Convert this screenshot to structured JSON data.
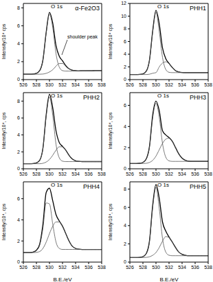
{
  "chart_data": [
    {
      "type": "line",
      "title": "α-Fe2O3",
      "annotations": [
        "O 1s",
        "shoulder peak"
      ],
      "y_label": "Intensity/10⁴ cps",
      "x": [
        526,
        526.5,
        527,
        527.5,
        528,
        528.5,
        529,
        529.5,
        530,
        530.5,
        531,
        531.5,
        532,
        532.5,
        533,
        533.5,
        534,
        534.5,
        535,
        535.5,
        536,
        536.5,
        537,
        537.5,
        538
      ],
      "xlim": [
        526,
        538
      ],
      "xticks": [
        526,
        528,
        530,
        532,
        534,
        536,
        538
      ],
      "ylim": [
        0,
        8.5
      ],
      "yticks": [
        0,
        2,
        4,
        6,
        8
      ],
      "series": [
        {
          "color": "#000000",
          "values": [
            0.6,
            0.6,
            0.6,
            0.62,
            0.7,
            1.0,
            2.2,
            5.3,
            7.5,
            6.3,
            3.8,
            2.6,
            2.1,
            1.55,
            1.2,
            1.05,
            1.0,
            0.97,
            0.98,
            0.98,
            0.99,
            0.99,
            1.0,
            1.0,
            1.0
          ]
        },
        {
          "color": "#555555",
          "values": [
            0.6,
            0.6,
            0.6,
            0.62,
            0.7,
            1.0,
            2.2,
            5.2,
            7.3,
            5.8,
            2.9,
            1.4,
            1.0,
            0.95,
            0.95,
            0.95,
            0.96,
            0.97,
            0.98,
            0.98,
            0.99,
            0.99,
            1.0,
            1.0,
            1.0
          ]
        },
        {
          "color": "#555555",
          "values": [
            0.6,
            0.6,
            0.6,
            0.6,
            0.6,
            0.6,
            0.62,
            0.7,
            0.85,
            1.1,
            1.5,
            1.8,
            1.8,
            1.5,
            1.2,
            1.05,
            1.0,
            0.97,
            0.98,
            0.98,
            0.99,
            0.99,
            1.0,
            1.0,
            1.0
          ]
        }
      ]
    },
    {
      "type": "line",
      "title": "PHH1",
      "annotations": [
        "O 1s"
      ],
      "y_label": "Intensity/10⁴ cps",
      "x": [
        526,
        526.5,
        527,
        527.5,
        528,
        528.5,
        529,
        529.5,
        530,
        530.5,
        531,
        531.5,
        532,
        532.5,
        533,
        533.5,
        534,
        534.5,
        535,
        535.5,
        536,
        536.5,
        537,
        537.5,
        538
      ],
      "xlim": [
        526,
        538
      ],
      "xticks": [
        526,
        528,
        530,
        532,
        534,
        536,
        538
      ],
      "ylim": [
        0,
        12
      ],
      "yticks": [
        0,
        2,
        4,
        6,
        8,
        10,
        12
      ],
      "series": [
        {
          "color": "#000000",
          "values": [
            0.8,
            0.8,
            0.8,
            0.82,
            0.9,
            1.3,
            3.05,
            7.7,
            10.9,
            8.8,
            5.0,
            3.3,
            2.55,
            1.9,
            1.4,
            1.2,
            1.12,
            1.1,
            1.1,
            1.1,
            1.1,
            1.1,
            1.1,
            1.1,
            1.1
          ]
        },
        {
          "color": "#555555",
          "values": [
            0.8,
            0.8,
            0.8,
            0.82,
            0.9,
            1.3,
            3.0,
            7.5,
            10.6,
            7.6,
            3.5,
            1.6,
            1.15,
            1.1,
            1.1,
            1.1,
            1.1,
            1.1,
            1.1,
            1.1,
            1.1,
            1.1,
            1.1,
            1.1,
            1.1
          ]
        },
        {
          "color": "#555555",
          "values": [
            0.8,
            0.8,
            0.8,
            0.8,
            0.8,
            0.8,
            0.85,
            1.0,
            1.1,
            2.0,
            2.6,
            2.8,
            2.5,
            1.9,
            1.4,
            1.2,
            1.12,
            1.1,
            1.1,
            1.1,
            1.1,
            1.1,
            1.1,
            1.1,
            1.1
          ]
        }
      ]
    },
    {
      "type": "line",
      "title": "PHH2",
      "annotations": [
        "O 1s"
      ],
      "y_label": "Intensity/10⁴, cps",
      "x": [
        526,
        526.5,
        527,
        527.5,
        528,
        528.5,
        529,
        529.5,
        530,
        530.5,
        531,
        531.5,
        532,
        532.5,
        533,
        533.5,
        534,
        534.5,
        535,
        535.5,
        536,
        536.5,
        537,
        537.5,
        538
      ],
      "xlim": [
        526,
        538
      ],
      "xticks": [
        526,
        528,
        530,
        532,
        534,
        536,
        538
      ],
      "ylim": [
        0,
        9
      ],
      "yticks": [
        0,
        2,
        4,
        6,
        8
      ],
      "series": [
        {
          "color": "#000000",
          "values": [
            0.6,
            0.6,
            0.6,
            0.62,
            0.7,
            1.0,
            2.45,
            6.4,
            8.8,
            7.2,
            4.5,
            3.1,
            2.65,
            2.2,
            1.6,
            1.15,
            0.95,
            0.88,
            0.85,
            0.85,
            0.85,
            0.85,
            0.85,
            0.85,
            0.85
          ]
        },
        {
          "color": "#555555",
          "values": [
            0.6,
            0.6,
            0.6,
            0.62,
            0.7,
            1.0,
            2.4,
            6.2,
            8.5,
            6.3,
            2.9,
            1.3,
            0.9,
            0.85,
            0.85,
            0.85,
            0.85,
            0.85,
            0.85,
            0.85,
            0.85,
            0.85,
            0.85,
            0.85,
            0.85
          ]
        },
        {
          "color": "#555555",
          "values": [
            0.6,
            0.6,
            0.6,
            0.6,
            0.6,
            0.6,
            0.65,
            0.8,
            1.1,
            1.6,
            2.2,
            2.6,
            2.6,
            2.2,
            1.6,
            1.15,
            0.95,
            0.88,
            0.85,
            0.85,
            0.85,
            0.85,
            0.85,
            0.85,
            0.85
          ]
        }
      ]
    },
    {
      "type": "line",
      "title": "PHH3",
      "annotations": [
        "O 1s"
      ],
      "y_label": "Intensity/10⁴, cps",
      "x": [
        526,
        526.5,
        527,
        527.5,
        528,
        528.5,
        529,
        529.5,
        530,
        530.5,
        531,
        531.5,
        532,
        532.5,
        533,
        533.5,
        534,
        534.5,
        535,
        535.5,
        536,
        536.5,
        537,
        537.5,
        538
      ],
      "xlim": [
        526,
        538
      ],
      "xticks": [
        526,
        528,
        530,
        532,
        534,
        536,
        538
      ],
      "ylim": [
        0,
        7.2
      ],
      "yticks": [
        0,
        2,
        4,
        6
      ],
      "series": [
        {
          "color": "#000000",
          "values": [
            0.5,
            0.5,
            0.5,
            0.52,
            0.6,
            0.92,
            2.1,
            5.1,
            6.4,
            5.5,
            3.6,
            3.2,
            2.95,
            2.6,
            2.0,
            1.4,
            1.0,
            0.8,
            0.72,
            0.7,
            0.7,
            0.7,
            0.7,
            0.7,
            0.7
          ]
        },
        {
          "color": "#555555",
          "values": [
            0.5,
            0.5,
            0.5,
            0.52,
            0.6,
            0.9,
            2.0,
            4.8,
            6.2,
            4.9,
            2.4,
            1.1,
            0.75,
            0.7,
            0.7,
            0.7,
            0.7,
            0.7,
            0.7,
            0.7,
            0.7,
            0.7,
            0.7,
            0.7,
            0.7
          ]
        },
        {
          "color": "#555555",
          "values": [
            0.5,
            0.5,
            0.5,
            0.5,
            0.5,
            0.52,
            0.6,
            0.8,
            1.2,
            1.8,
            2.4,
            2.8,
            2.9,
            2.6,
            2.0,
            1.4,
            1.0,
            0.8,
            0.72,
            0.7,
            0.7,
            0.7,
            0.7,
            0.7,
            0.7
          ]
        }
      ]
    },
    {
      "type": "line",
      "title": "PHH4",
      "annotations": [
        "O 1s"
      ],
      "y_label": "Intensity/10⁴, cps",
      "x_label": "B.E./eV",
      "x": [
        526,
        526.5,
        527,
        527.5,
        528,
        528.5,
        529,
        529.5,
        530,
        530.5,
        531,
        531.5,
        532,
        532.5,
        533,
        533.5,
        534,
        534.5,
        535,
        535.5,
        536,
        536.5,
        537,
        537.5,
        538
      ],
      "xlim": [
        526,
        538
      ],
      "xticks": [
        526,
        528,
        530,
        532,
        534,
        536,
        538
      ],
      "ylim": [
        0,
        7.6
      ],
      "yticks": [
        0,
        2,
        4,
        6
      ],
      "series": [
        {
          "color": "#000000",
          "values": [
            0.9,
            0.9,
            0.9,
            0.95,
            1.12,
            1.7,
            3.6,
            6.6,
            7.0,
            5.8,
            4.5,
            3.9,
            3.4,
            2.7,
            2.0,
            1.5,
            1.3,
            1.22,
            1.2,
            1.2,
            1.2,
            1.2,
            1.2,
            1.2,
            1.2
          ]
        },
        {
          "color": "#555555",
          "values": [
            0.9,
            0.9,
            0.9,
            0.95,
            1.1,
            1.6,
            3.2,
            5.6,
            5.5,
            3.6,
            1.9,
            1.3,
            1.2,
            1.2,
            1.2,
            1.2,
            1.2,
            1.2,
            1.2,
            1.2,
            1.2,
            1.2,
            1.2,
            1.2,
            1.2
          ]
        },
        {
          "color": "#555555",
          "values": [
            0.9,
            0.9,
            0.9,
            0.9,
            0.92,
            1.0,
            1.3,
            1.9,
            2.7,
            3.4,
            3.8,
            3.8,
            3.4,
            2.7,
            2.0,
            1.5,
            1.3,
            1.22,
            1.2,
            1.2,
            1.2,
            1.2,
            1.2,
            1.2,
            1.2
          ]
        }
      ]
    },
    {
      "type": "line",
      "title": "PHH5",
      "annotations": [
        "O 1s"
      ],
      "y_label": "Intensity/10⁴, cps",
      "x_label": "B.E./eV",
      "x": [
        526,
        526.5,
        527,
        527.5,
        528,
        528.5,
        529,
        529.5,
        530,
        530.5,
        531,
        531.5,
        532,
        532.5,
        533,
        533.5,
        534,
        534.5,
        535,
        535.5,
        536,
        536.5,
        537,
        537.5,
        538
      ],
      "xlim": [
        526,
        538
      ],
      "xticks": [
        526,
        528,
        530,
        532,
        534,
        536,
        538
      ],
      "ylim": [
        0,
        8.8
      ],
      "yticks": [
        0,
        2,
        4,
        6,
        8
      ],
      "series": [
        {
          "color": "#000000",
          "values": [
            0.5,
            0.5,
            0.5,
            0.52,
            0.6,
            0.92,
            2.3,
            6.25,
            8.5,
            7.0,
            4.4,
            3.4,
            2.75,
            2.2,
            1.6,
            1.1,
            0.85,
            0.75,
            0.7,
            0.7,
            0.7,
            0.7,
            0.7,
            0.7,
            0.7
          ]
        },
        {
          "color": "#555555",
          "values": [
            0.5,
            0.5,
            0.5,
            0.52,
            0.6,
            0.9,
            2.2,
            6.0,
            8.2,
            5.9,
            2.6,
            1.1,
            0.75,
            0.7,
            0.7,
            0.7,
            0.7,
            0.7,
            0.7,
            0.7,
            0.7,
            0.7,
            0.7,
            0.7,
            0.7
          ]
        },
        {
          "color": "#555555",
          "values": [
            0.5,
            0.5,
            0.5,
            0.5,
            0.5,
            0.52,
            0.58,
            0.75,
            1.05,
            1.6,
            2.3,
            2.8,
            2.7,
            2.2,
            1.6,
            1.1,
            0.85,
            0.75,
            0.7,
            0.7,
            0.7,
            0.7,
            0.7,
            0.7,
            0.7
          ]
        }
      ]
    }
  ]
}
